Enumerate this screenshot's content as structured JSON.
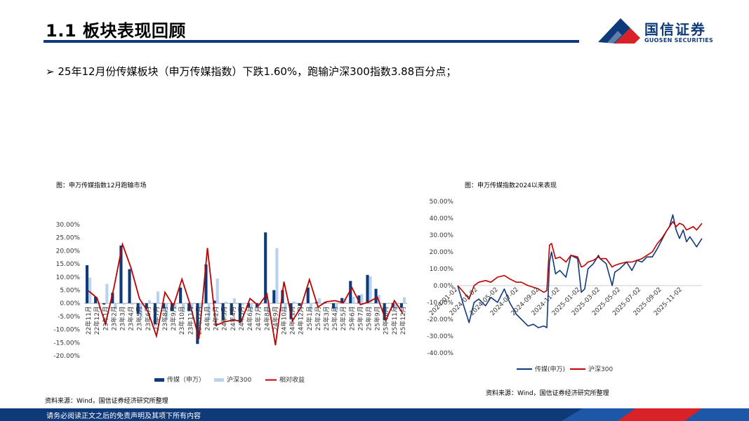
{
  "header": {
    "title": "1.1 板块表现回顾",
    "logo_cn": "国信证券",
    "logo_en": "GUOSEN SECURITIES"
  },
  "bullet": {
    "marker": "➢",
    "text": "25年12月份传媒板块（申万传媒指数）下跌1.60%，跑输沪深300指数3.88百分点；"
  },
  "colors": {
    "navy": "#0f3a7a",
    "light_blue": "#b9d3ee",
    "red": "#c00000"
  },
  "left_figure": {
    "title": "图：申万传媒指数12月跑输市场",
    "source": "资料来源：Wind，国信证券经济研究所整理"
  },
  "right_figure": {
    "title": "图：申万传媒指数2024以来表现",
    "source": "资料来源：Wind，国信证券经济研究所整理"
  },
  "footer": {
    "text": "请务必阅读正文之后的免责声明及其项下所有内容"
  },
  "chart_data": [
    {
      "type": "bar",
      "title": "",
      "categories": [
        "22年11月",
        "22年12月",
        "23年1月",
        "23年2月",
        "23年3月",
        "23年4月",
        "23年5月",
        "23年6月",
        "23年7月",
        "23年8月",
        "23年9月",
        "23年10月",
        "23年11月",
        "23年12月",
        "24年1月",
        "24年2月",
        "24年3月",
        "24年4月",
        "24年5月",
        "24年6月",
        "24年7月",
        "24年8月",
        "24年9月",
        "24年10月",
        "24年11月",
        "24年12月",
        "25年1月",
        "25年2月",
        "25年3月",
        "25年4月",
        "25年5月",
        "25年6月",
        "25年7月",
        "25年8月",
        "25年9月",
        "25年10月",
        "25年11月",
        "25年12月"
      ],
      "series": [
        {
          "name": "传媒（申万）",
          "values": [
            14.5,
            2.5,
            -0.5,
            4.0,
            22.0,
            13.0,
            -4.0,
            -2.0,
            -8.0,
            -2.0,
            -3.0,
            6.0,
            -3.0,
            -15.5,
            14.8,
            1.0,
            -6.5,
            -4.5,
            -7.5,
            -1.5,
            -1.5,
            27.0,
            5.0,
            5.0,
            -6.0,
            -1.0,
            6.0,
            0.5,
            0.5,
            -2.0,
            2.0,
            8.5,
            3.0,
            10.8,
            5.5,
            -6.5,
            -1.5,
            -1.6
          ]
        },
        {
          "name": "沪深300",
          "values": [
            9.8,
            0.5,
            7.4,
            -2.1,
            -0.5,
            -0.5,
            -5.7,
            1.2,
            4.5,
            -6.2,
            -2.0,
            -3.2,
            -2.1,
            -1.9,
            -6.3,
            9.4,
            0.6,
            1.9,
            -0.7,
            -3.3,
            -0.6,
            -3.5,
            21.0,
            -3.2,
            0.7,
            0.5,
            -3.0,
            1.9,
            -0.1,
            -3.0,
            1.8,
            2.5,
            3.5,
            10.3,
            3.2,
            0.0,
            -2.5,
            2.3
          ]
        },
        {
          "name": "相对收益",
          "values": [
            4.7,
            2.0,
            -7.9,
            6.1,
            22.5,
            13.5,
            1.7,
            -3.2,
            -12.5,
            4.2,
            -1.0,
            9.2,
            -0.9,
            -13.6,
            21.1,
            -8.4,
            -7.1,
            -6.4,
            -6.8,
            1.8,
            -0.9,
            3.5,
            -16.0,
            8.2,
            -6.7,
            -1.5,
            9.0,
            -1.4,
            0.6,
            1.0,
            0.2,
            6.0,
            -0.5,
            0.5,
            2.3,
            -6.5,
            1.0,
            -3.9
          ]
        }
      ],
      "ylim": [
        -20,
        30
      ],
      "yticks": [
        "-20.00%",
        "-15.00%",
        "-10.00%",
        "-5.00%",
        "0.00%",
        "5.00%",
        "10.00%",
        "15.00%",
        "20.00%",
        "25.00%",
        "30.00%"
      ],
      "legend": "bottom"
    },
    {
      "type": "line",
      "title": "",
      "x_ticks": [
        "2024-01-02",
        "2024-03-02",
        "2024-05-02",
        "2024-07-02",
        "2024-09-02",
        "2024-11-02",
        "2025-01-02",
        "2025-03-02",
        "2025-05-02",
        "2025-07-02",
        "2025-09-02",
        "2025-11-02"
      ],
      "series": [
        {
          "name": "传媒(申万)",
          "points": [
            [
              "2024-01-02",
              0
            ],
            [
              "2024-01-20",
              -12
            ],
            [
              "2024-02-05",
              -22
            ],
            [
              "2024-02-20",
              -10
            ],
            [
              "2024-03-05",
              -8
            ],
            [
              "2024-03-25",
              -12
            ],
            [
              "2024-04-10",
              -7
            ],
            [
              "2024-04-30",
              -10
            ],
            [
              "2024-05-20",
              -2
            ],
            [
              "2024-06-05",
              -10
            ],
            [
              "2024-06-25",
              -17
            ],
            [
              "2024-07-10",
              -20
            ],
            [
              "2024-07-30",
              -24
            ],
            [
              "2024-08-15",
              -23
            ],
            [
              "2024-08-30",
              -25
            ],
            [
              "2024-09-15",
              -24
            ],
            [
              "2024-09-24",
              -25
            ],
            [
              "2024-10-02",
              14
            ],
            [
              "2024-10-08",
              20
            ],
            [
              "2024-10-20",
              7
            ],
            [
              "2024-11-02",
              9
            ],
            [
              "2024-11-20",
              5
            ],
            [
              "2024-12-05",
              18
            ],
            [
              "2024-12-25",
              16
            ],
            [
              "2025-01-05",
              -4
            ],
            [
              "2025-01-15",
              -2
            ],
            [
              "2025-01-25",
              10
            ],
            [
              "2025-02-10",
              13
            ],
            [
              "2025-02-25",
              18
            ],
            [
              "2025-03-02",
              16
            ],
            [
              "2025-03-20",
              13
            ],
            [
              "2025-04-07",
              0
            ],
            [
              "2025-04-15",
              8
            ],
            [
              "2025-04-30",
              10
            ],
            [
              "2025-05-20",
              14
            ],
            [
              "2025-06-05",
              9
            ],
            [
              "2025-06-20",
              15
            ],
            [
              "2025-07-05",
              14
            ],
            [
              "2025-07-20",
              17
            ],
            [
              "2025-08-05",
              17
            ],
            [
              "2025-08-20",
              22
            ],
            [
              "2025-09-02",
              27
            ],
            [
              "2025-09-15",
              32
            ],
            [
              "2025-09-25",
              35
            ],
            [
              "2025-10-05",
              42
            ],
            [
              "2025-10-15",
              33
            ],
            [
              "2025-10-25",
              28
            ],
            [
              "2025-11-05",
              33
            ],
            [
              "2025-11-15",
              26
            ],
            [
              "2025-11-25",
              29
            ],
            [
              "2025-12-05",
              26
            ],
            [
              "2025-12-15",
              23
            ],
            [
              "2025-12-31",
              28
            ]
          ]
        },
        {
          "name": "沪深300",
          "points": [
            [
              "2024-01-02",
              0
            ],
            [
              "2024-01-20",
              -4
            ],
            [
              "2024-02-05",
              -8
            ],
            [
              "2024-02-20",
              0
            ],
            [
              "2024-03-05",
              2
            ],
            [
              "2024-03-25",
              3
            ],
            [
              "2024-04-10",
              2
            ],
            [
              "2024-04-30",
              5
            ],
            [
              "2024-05-20",
              6
            ],
            [
              "2024-06-05",
              4
            ],
            [
              "2024-06-25",
              2
            ],
            [
              "2024-07-10",
              2
            ],
            [
              "2024-07-30",
              0
            ],
            [
              "2024-08-15",
              -1
            ],
            [
              "2024-08-30",
              -2
            ],
            [
              "2024-09-15",
              -4
            ],
            [
              "2024-09-24",
              -3
            ],
            [
              "2024-10-02",
              24
            ],
            [
              "2024-10-08",
              25
            ],
            [
              "2024-10-20",
              16
            ],
            [
              "2024-11-02",
              17
            ],
            [
              "2024-11-20",
              14
            ],
            [
              "2024-12-05",
              18
            ],
            [
              "2024-12-25",
              17
            ],
            [
              "2025-01-05",
              11
            ],
            [
              "2025-01-15",
              12
            ],
            [
              "2025-01-25",
              14
            ],
            [
              "2025-02-10",
              15
            ],
            [
              "2025-02-25",
              17
            ],
            [
              "2025-03-02",
              16
            ],
            [
              "2025-03-20",
              16
            ],
            [
              "2025-04-07",
              11
            ],
            [
              "2025-04-15",
              12
            ],
            [
              "2025-04-30",
              13
            ],
            [
              "2025-05-20",
              14
            ],
            [
              "2025-06-05",
              14
            ],
            [
              "2025-06-20",
              15
            ],
            [
              "2025-07-05",
              16
            ],
            [
              "2025-07-20",
              18
            ],
            [
              "2025-08-05",
              20
            ],
            [
              "2025-08-20",
              25
            ],
            [
              "2025-09-02",
              28
            ],
            [
              "2025-09-15",
              32
            ],
            [
              "2025-09-25",
              35
            ],
            [
              "2025-10-05",
              38
            ],
            [
              "2025-10-15",
              35
            ],
            [
              "2025-10-25",
              37
            ],
            [
              "2025-11-05",
              36
            ],
            [
              "2025-11-15",
              33
            ],
            [
              "2025-11-25",
              34
            ],
            [
              "2025-12-05",
              35
            ],
            [
              "2025-12-15",
              33
            ],
            [
              "2025-12-31",
              37
            ]
          ]
        }
      ],
      "ylim": [
        -40,
        50
      ],
      "yticks": [
        "-40.00%",
        "-30.00%",
        "-20.00%",
        "-10.00%",
        "0.00%",
        "10.00%",
        "20.00%",
        "30.00%",
        "40.00%",
        "50.00%"
      ],
      "legend": "bottom"
    }
  ]
}
